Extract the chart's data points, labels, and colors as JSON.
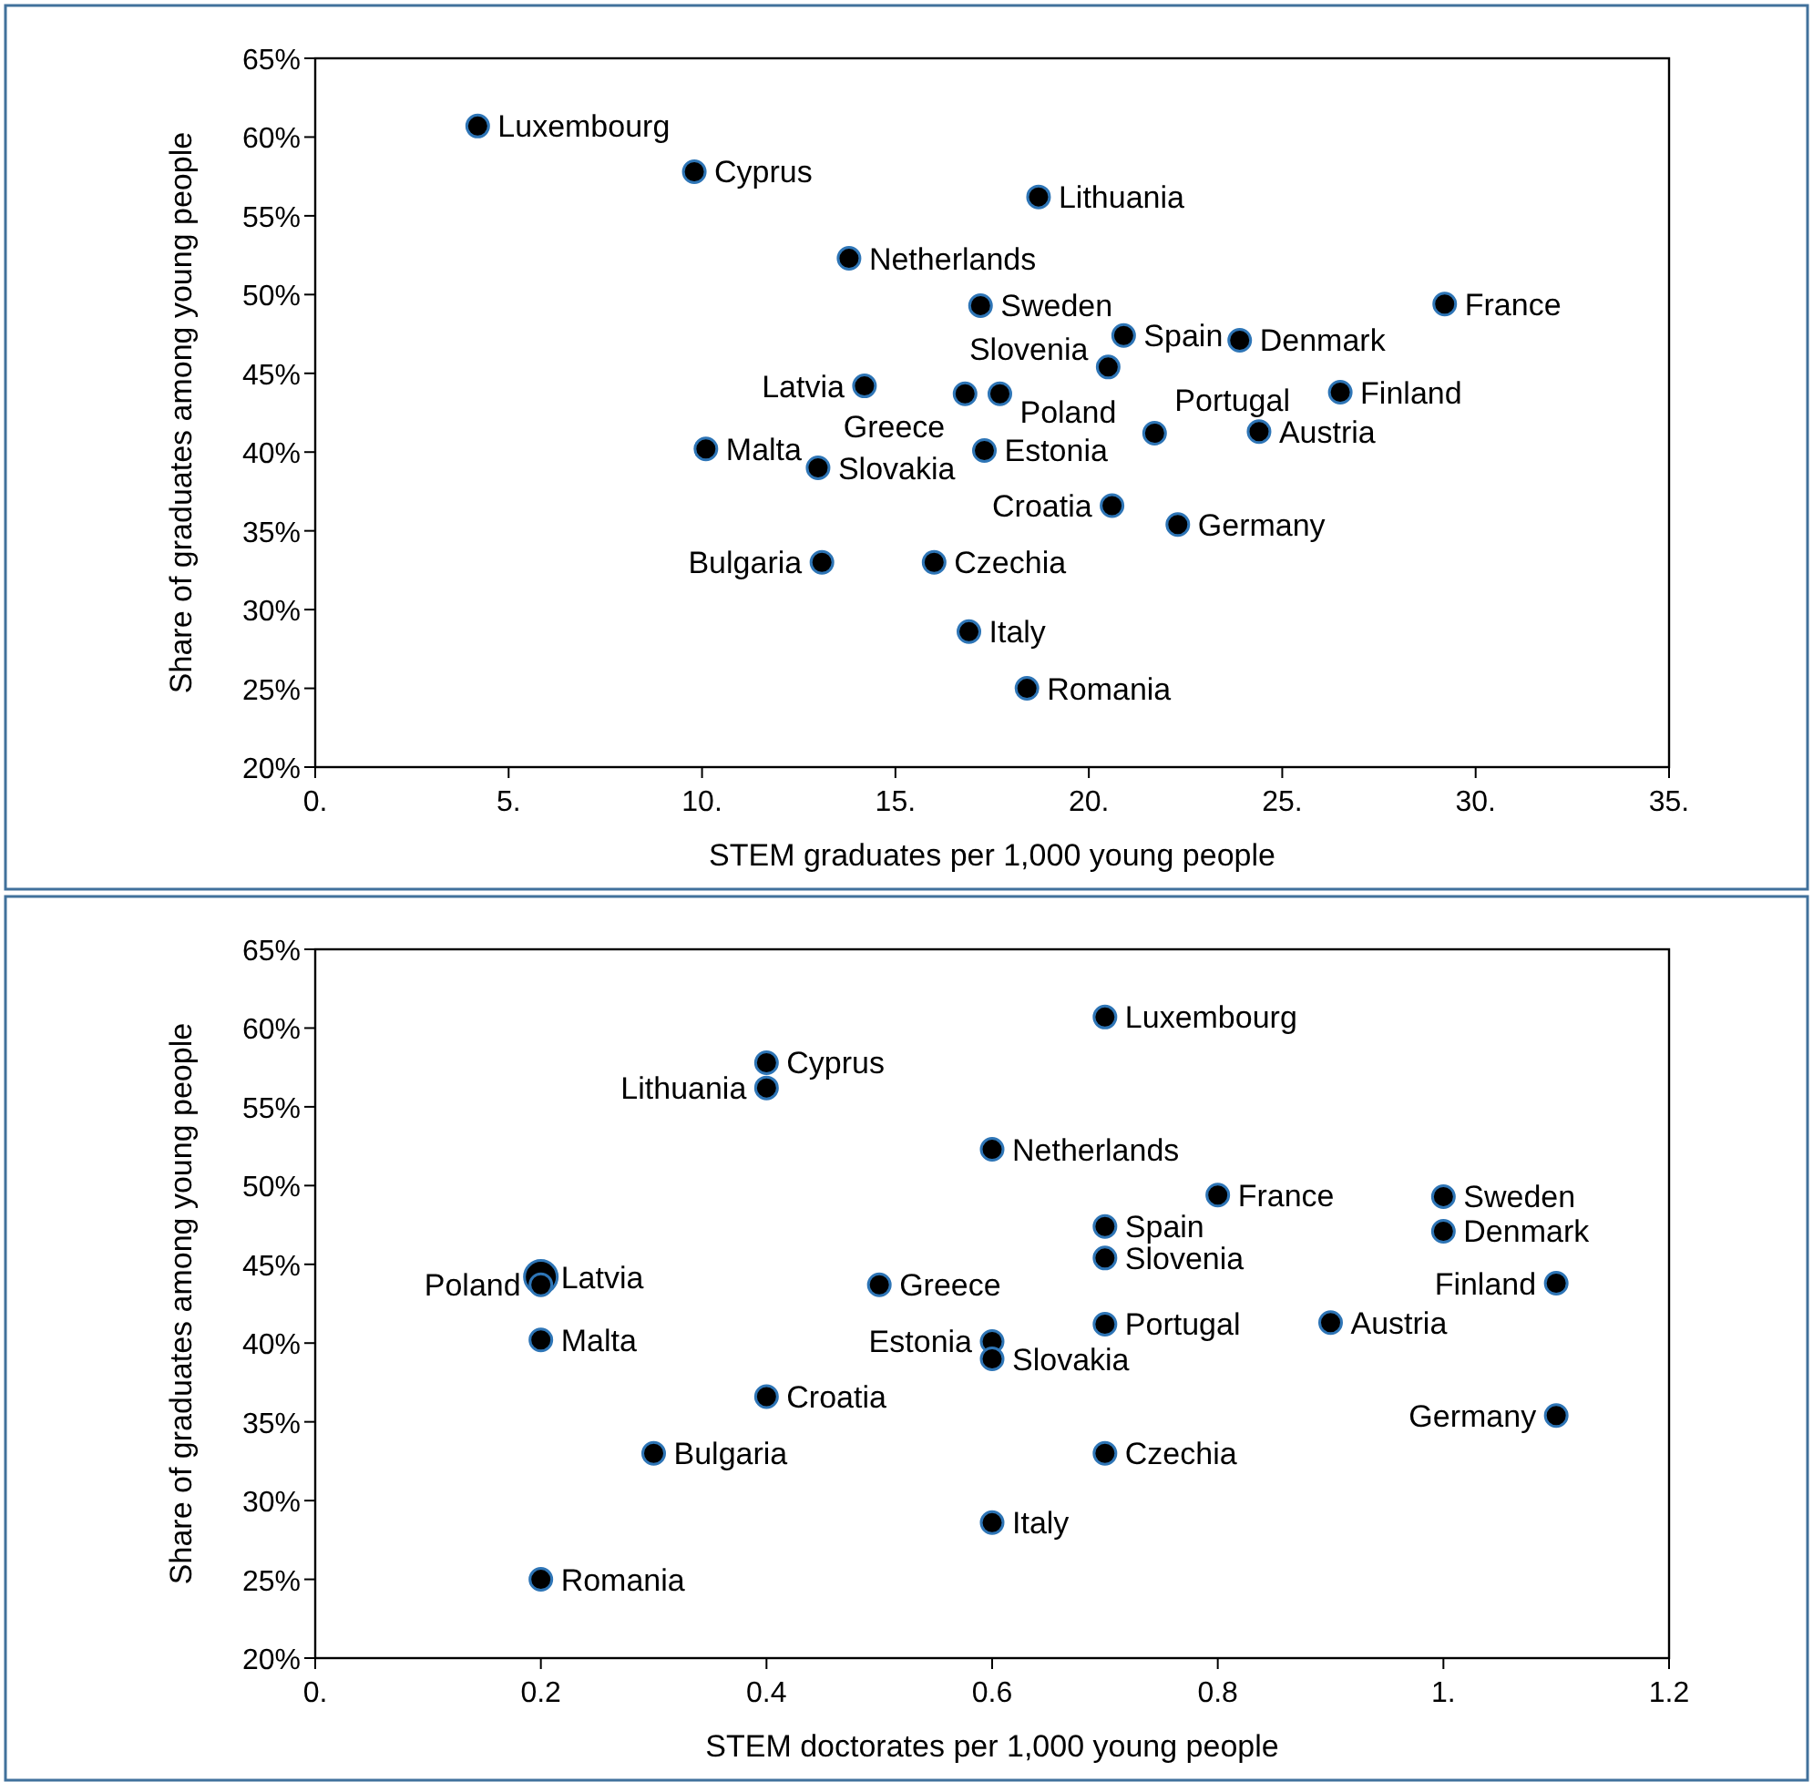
{
  "chart_data": [
    {
      "type": "scatter",
      "xlabel": "STEM graduates per 1,000 young people",
      "ylabel": "Share of graduates among young people",
      "xlim": [
        0,
        35
      ],
      "xticks": [
        {
          "value": 0,
          "label": "0."
        },
        {
          "value": 5,
          "label": "5."
        },
        {
          "value": 10,
          "label": "10."
        },
        {
          "value": 15,
          "label": "15."
        },
        {
          "value": 20,
          "label": "20."
        },
        {
          "value": 25,
          "label": "25."
        },
        {
          "value": 30,
          "label": "30."
        },
        {
          "value": 35,
          "label": "35."
        }
      ],
      "ylim": [
        20,
        65
      ],
      "yticks": [
        {
          "value": 20,
          "label": "20%"
        },
        {
          "value": 25,
          "label": "25%"
        },
        {
          "value": 30,
          "label": "30%"
        },
        {
          "value": 35,
          "label": "35%"
        },
        {
          "value": 40,
          "label": "40%"
        },
        {
          "value": 45,
          "label": "45%"
        },
        {
          "value": 50,
          "label": "50%"
        },
        {
          "value": 55,
          "label": "55%"
        },
        {
          "value": 60,
          "label": "60%"
        },
        {
          "value": 65,
          "label": "65%"
        }
      ],
      "marker": "circle",
      "grid": false,
      "series": [
        {
          "name": "Luxembourg",
          "color": "#000000",
          "x": [
            4.2
          ],
          "values": [
            60.7
          ]
        },
        {
          "name": "Cyprus",
          "color": "#000000",
          "x": [
            9.8
          ],
          "values": [
            57.8
          ]
        },
        {
          "name": "Lithuania",
          "color": "#000000",
          "x": [
            18.7
          ],
          "values": [
            56.2
          ]
        },
        {
          "name": "Netherlands",
          "color": "#000000",
          "x": [
            13.8
          ],
          "values": [
            52.3
          ]
        },
        {
          "name": "Sweden",
          "color": "#000000",
          "x": [
            17.2
          ],
          "values": [
            49.3
          ]
        },
        {
          "name": "France",
          "color": "#000000",
          "x": [
            29.2
          ],
          "values": [
            49.4
          ]
        },
        {
          "name": "Spain",
          "color": "#000000",
          "x": [
            20.9
          ],
          "values": [
            47.4
          ]
        },
        {
          "name": "Denmark",
          "color": "#000000",
          "x": [
            23.9
          ],
          "values": [
            47.1
          ]
        },
        {
          "name": "Slovenia",
          "color": "#000000",
          "x": [
            20.5
          ],
          "values": [
            45.4
          ]
        },
        {
          "name": "Latvia",
          "color": "#000000",
          "x": [
            14.2
          ],
          "values": [
            44.2
          ]
        },
        {
          "name": "Greece",
          "color": "#000000",
          "x": [
            16.8
          ],
          "values": [
            43.7
          ]
        },
        {
          "name": "Poland",
          "color": "#000000",
          "x": [
            17.7
          ],
          "values": [
            43.7
          ]
        },
        {
          "name": "Finland",
          "color": "#000000",
          "x": [
            26.5
          ],
          "values": [
            43.8
          ]
        },
        {
          "name": "Malta",
          "color": "#000000",
          "x": [
            10.1
          ],
          "values": [
            40.2
          ]
        },
        {
          "name": "Estonia",
          "color": "#000000",
          "x": [
            17.3
          ],
          "values": [
            40.1
          ]
        },
        {
          "name": "Portugal",
          "color": "#000000",
          "x": [
            21.7
          ],
          "values": [
            41.2
          ]
        },
        {
          "name": "Austria",
          "color": "#000000",
          "x": [
            24.4
          ],
          "values": [
            41.3
          ]
        },
        {
          "name": "Slovakia",
          "color": "#000000",
          "x": [
            13.0
          ],
          "values": [
            39.0
          ]
        },
        {
          "name": "Croatia",
          "color": "#000000",
          "x": [
            20.6
          ],
          "values": [
            36.6
          ]
        },
        {
          "name": "Germany",
          "color": "#000000",
          "x": [
            22.3
          ],
          "values": [
            35.4
          ]
        },
        {
          "name": "Bulgaria",
          "color": "#000000",
          "x": [
            13.1
          ],
          "values": [
            33.0
          ]
        },
        {
          "name": "Czechia",
          "color": "#000000",
          "x": [
            16.0
          ],
          "values": [
            33.0
          ]
        },
        {
          "name": "Italy",
          "color": "#000000",
          "x": [
            16.9
          ],
          "values": [
            28.6
          ]
        },
        {
          "name": "Romania",
          "color": "#000000",
          "x": [
            18.4
          ],
          "values": [
            25.0
          ]
        }
      ]
    },
    {
      "type": "scatter",
      "xlabel": "STEM doctorates per 1,000 young people",
      "ylabel": "Share of graduates among young people",
      "xlim": [
        0,
        1.2
      ],
      "xticks": [
        {
          "value": 0,
          "label": "0."
        },
        0.2,
        0.4,
        0.6,
        0.8,
        {
          "value": 1,
          "label": "1."
        },
        1.2
      ],
      "ylim": [
        20,
        65
      ],
      "yticks": [
        {
          "value": 20,
          "label": "20%"
        },
        {
          "value": 25,
          "label": "25%"
        },
        {
          "value": 30,
          "label": "30%"
        },
        {
          "value": 35,
          "label": "35%"
        },
        {
          "value": 40,
          "label": "40%"
        },
        {
          "value": 45,
          "label": "45%"
        },
        {
          "value": 50,
          "label": "50%"
        },
        {
          "value": 55,
          "label": "55%"
        },
        {
          "value": 60,
          "label": "60%"
        },
        {
          "value": 65,
          "label": "65%"
        }
      ],
      "marker": "circle",
      "grid": false,
      "series": [
        {
          "name": "Luxembourg",
          "color": "#000000",
          "x": [
            0.7
          ],
          "values": [
            60.7
          ]
        },
        {
          "name": "Cyprus",
          "color": "#000000",
          "x": [
            0.4
          ],
          "values": [
            57.8
          ]
        },
        {
          "name": "Lithuania",
          "color": "#000000",
          "x": [
            0.4
          ],
          "values": [
            56.2
          ]
        },
        {
          "name": "Netherlands",
          "color": "#000000",
          "x": [
            0.6
          ],
          "values": [
            52.3
          ]
        },
        {
          "name": "Sweden",
          "color": "#000000",
          "x": [
            1.0
          ],
          "values": [
            49.3
          ]
        },
        {
          "name": "France",
          "color": "#000000",
          "x": [
            0.8
          ],
          "values": [
            49.4
          ]
        },
        {
          "name": "Spain",
          "color": "#000000",
          "x": [
            0.7
          ],
          "values": [
            47.4
          ]
        },
        {
          "name": "Denmark",
          "color": "#000000",
          "x": [
            1.0
          ],
          "values": [
            47.1
          ]
        },
        {
          "name": "Slovenia",
          "color": "#000000",
          "x": [
            0.7
          ],
          "values": [
            45.4
          ]
        },
        {
          "name": "Latvia",
          "color": "#000000",
          "x": [
            0.2
          ],
          "values": [
            44.2
          ]
        },
        {
          "name": "Greece",
          "color": "#000000",
          "x": [
            0.5
          ],
          "values": [
            43.7
          ]
        },
        {
          "name": "Poland",
          "color": "#000000",
          "x": [
            0.2
          ],
          "values": [
            43.7
          ]
        },
        {
          "name": "Finland",
          "color": "#000000",
          "x": [
            1.1
          ],
          "values": [
            43.8
          ]
        },
        {
          "name": "Malta",
          "color": "#000000",
          "x": [
            0.2
          ],
          "values": [
            40.2
          ]
        },
        {
          "name": "Estonia",
          "color": "#000000",
          "x": [
            0.6
          ],
          "values": [
            40.1
          ]
        },
        {
          "name": "Portugal",
          "color": "#000000",
          "x": [
            0.7
          ],
          "values": [
            41.2
          ]
        },
        {
          "name": "Austria",
          "color": "#000000",
          "x": [
            0.9
          ],
          "values": [
            41.3
          ]
        },
        {
          "name": "Slovakia",
          "color": "#000000",
          "x": [
            0.6
          ],
          "values": [
            39.0
          ]
        },
        {
          "name": "Croatia",
          "color": "#000000",
          "x": [
            0.4
          ],
          "values": [
            36.6
          ]
        },
        {
          "name": "Germany",
          "color": "#000000",
          "x": [
            1.1
          ],
          "values": [
            35.4
          ]
        },
        {
          "name": "Bulgaria",
          "color": "#000000",
          "x": [
            0.3
          ],
          "values": [
            33.0
          ]
        },
        {
          "name": "Czechia",
          "color": "#000000",
          "x": [
            0.7
          ],
          "values": [
            33.0
          ]
        },
        {
          "name": "Italy",
          "color": "#000000",
          "x": [
            0.6
          ],
          "values": [
            28.6
          ]
        },
        {
          "name": "Romania",
          "color": "#000000",
          "x": [
            0.2
          ],
          "values": [
            25.0
          ]
        }
      ]
    }
  ]
}
